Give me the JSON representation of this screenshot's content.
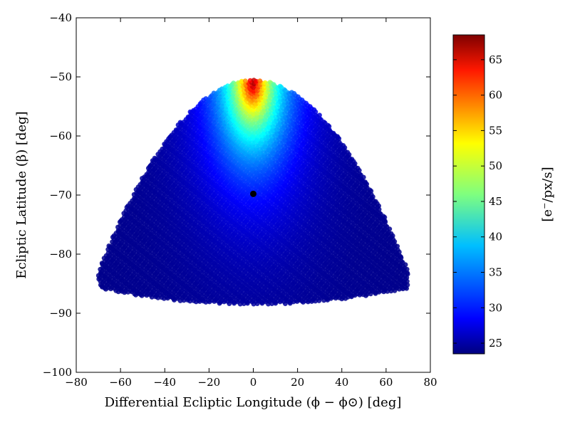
{
  "chart_data": {
    "type": "scatter",
    "xlabel": "Differential Ecliptic Longitude (ϕ − ϕ⊙) [deg]",
    "ylabel": "Ecliptic Latitude (β) [deg]",
    "colorbar_label": "[e⁻/px/s]",
    "xlim": [
      -80,
      80
    ],
    "ylim": [
      -100,
      -40
    ],
    "x_ticks": [
      "−80",
      "−60",
      "−40",
      "−20",
      "0",
      "20",
      "40",
      "60",
      "80"
    ],
    "y_ticks": [
      "−100",
      "−90",
      "−80",
      "−70",
      "−60",
      "−50",
      "−40"
    ],
    "colorbar_range": [
      23.5,
      68.5
    ],
    "colorbar_ticks": [
      "25",
      "30",
      "35",
      "40",
      "45",
      "50",
      "55",
      "60",
      "65"
    ],
    "colormap": "jet",
    "region": {
      "description_points": [
        {
          "x": -70,
          "y": -82
        },
        {
          "x": -62,
          "y": -72
        },
        {
          "x": -50,
          "y": -64
        },
        {
          "x": -35,
          "y": -58
        },
        {
          "x": -20,
          "y": -53
        },
        {
          "x": 0,
          "y": -50.5
        },
        {
          "x": 20,
          "y": -53
        },
        {
          "x": 35,
          "y": -58
        },
        {
          "x": 50,
          "y": -64
        },
        {
          "x": 62,
          "y": -72
        },
        {
          "x": 70,
          "y": -82
        },
        {
          "x": 66,
          "y": -86
        },
        {
          "x": 40,
          "y": -88
        },
        {
          "x": 0,
          "y": -88.5
        },
        {
          "x": -40,
          "y": -88
        },
        {
          "x": -66,
          "y": -86
        }
      ],
      "value_min": 24,
      "value_max": 68,
      "peak": {
        "x": 0,
        "y": -51,
        "value": 68
      }
    },
    "marker": {
      "x": 0,
      "y": -69.8,
      "color": "#000000"
    }
  }
}
